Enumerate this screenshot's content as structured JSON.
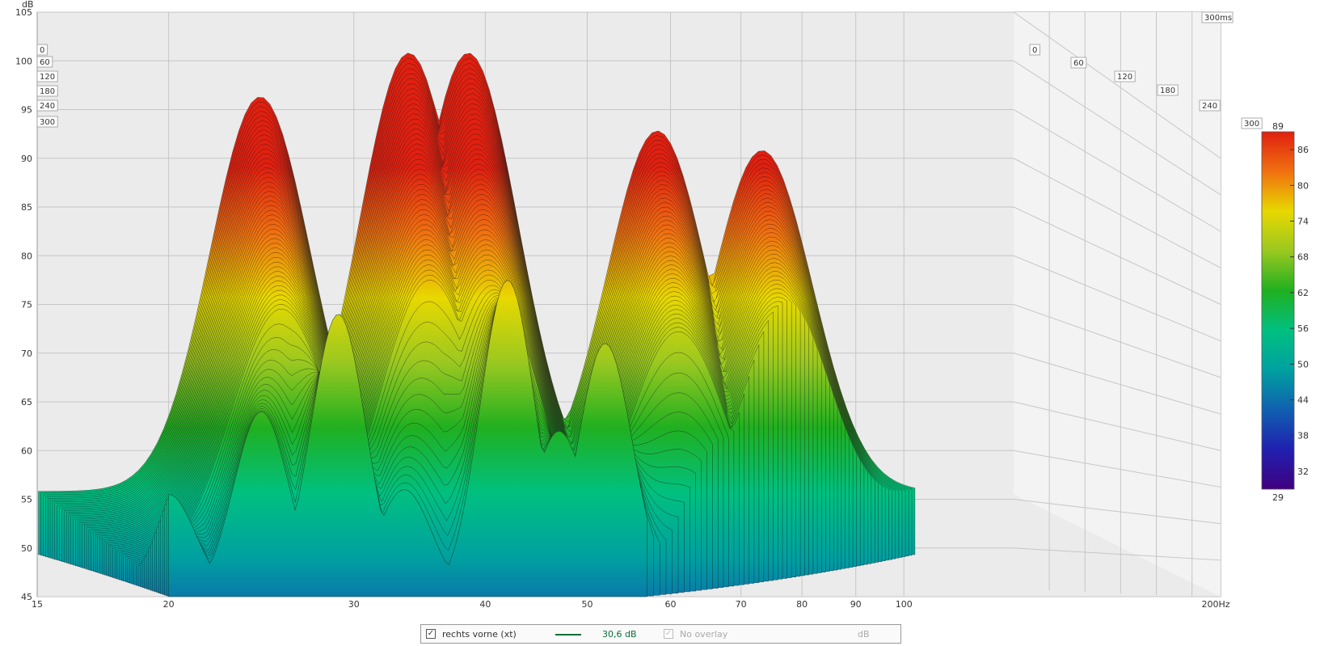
{
  "chart_data": {
    "type": "waterfall",
    "ylabel": "dB",
    "xunit": "Hz",
    "yticks": [
      45,
      50,
      55,
      60,
      65,
      70,
      75,
      80,
      85,
      90,
      95,
      100,
      105
    ],
    "ylim": [
      45,
      105
    ],
    "xlim": [
      15,
      200
    ],
    "xscale": "log",
    "xticks": [
      15,
      20,
      30,
      40,
      50,
      60,
      70,
      80,
      90,
      100,
      200
    ],
    "xtick_labels": [
      "15",
      "20",
      "30",
      "40",
      "50",
      "60",
      "70",
      "80",
      "90",
      "100",
      "200Hz"
    ],
    "time_ticks_right": [
      "0",
      "60",
      "120",
      "180",
      "240",
      "300"
    ],
    "time_ticks_left": [
      "0",
      "60",
      "120",
      "180",
      "240",
      "300"
    ],
    "time_max_label": "300ms",
    "time_range_ms": [
      0,
      300
    ],
    "colorbar": {
      "min": 29,
      "max": 89,
      "ticks": [
        89,
        86,
        80,
        74,
        68,
        62,
        56,
        50,
        44,
        38,
        32,
        29
      ],
      "colors": [
        "#e02010",
        "#f07010",
        "#e8d800",
        "#9ac820",
        "#20b020",
        "#00c080",
        "#00a0a0",
        "#1060b0",
        "#2020b0",
        "#400080"
      ]
    },
    "front_slice_peaks": [
      {
        "freq": 20,
        "db": 55.5
      },
      {
        "freq": 24.5,
        "db": 64
      },
      {
        "freq": 29,
        "db": 74
      },
      {
        "freq": 33.5,
        "db": 56
      },
      {
        "freq": 42,
        "db": 77.5
      },
      {
        "freq": 47,
        "db": 62
      },
      {
        "freq": 52,
        "db": 71
      },
      {
        "freq": 57,
        "db": 45
      }
    ],
    "back_ridge_peaks": [
      {
        "freq": 26,
        "db": 85.5
      },
      {
        "freq": 36,
        "db": 90
      },
      {
        "freq": 41,
        "db": 90
      },
      {
        "freq": 62,
        "db": 82
      },
      {
        "freq": 78,
        "db": 80
      }
    ]
  },
  "legend": {
    "series_name": "rechts vorne (xt)",
    "series_value": "30,6 dB",
    "overlay_label": "No overlay",
    "overlay_unit": "dB",
    "series_checked": "✓",
    "overlay_checked": "✓"
  }
}
